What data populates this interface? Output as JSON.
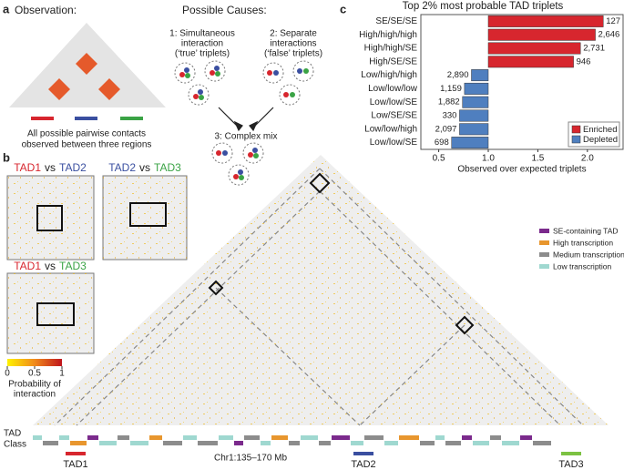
{
  "panels": {
    "a": {
      "letter": "a",
      "observation": "Observation:",
      "observation_caption": [
        "All possible pairwise contacts",
        "observed between three regions"
      ],
      "causes_title": "Possible Causes:",
      "cause1": [
        "1: Simultaneous",
        "interaction",
        "(‘true’ triplets)"
      ],
      "cause2": [
        "2: Separate",
        "interactions",
        "(‘false’ triplets)"
      ],
      "cause3": "3: Complex mix"
    },
    "b": {
      "letter": "b",
      "maps": [
        {
          "parts": [
            {
              "text": "TAD1",
              "color": "#d7262e"
            },
            {
              "text": "vs",
              "color": "#222222"
            },
            {
              "text": "TAD2",
              "color": "#3a4fa0"
            }
          ]
        },
        {
          "parts": [
            {
              "text": "TAD2",
              "color": "#3a4fa0"
            },
            {
              "text": "vs",
              "color": "#222222"
            },
            {
              "text": "TAD3",
              "color": "#3aa345"
            }
          ]
        },
        {
          "parts": [
            {
              "text": "TAD1",
              "color": "#d7262e"
            },
            {
              "text": "vs",
              "color": "#222222"
            },
            {
              "text": "TAD3",
              "color": "#3aa345"
            }
          ]
        }
      ],
      "colorbar_ticks": [
        0,
        0.5,
        1
      ],
      "colorbar_label": [
        "Probability of",
        "interaction"
      ],
      "legend": [
        {
          "name": "SE-containing TAD",
          "color": "#7b2a8c"
        },
        {
          "name": "High transcription",
          "color": "#e8962e"
        },
        {
          "name": "Medium transcription",
          "color": "#8c8c8c"
        },
        {
          "name": "Low transcription",
          "color": "#9fd8d0"
        }
      ],
      "track_label": [
        "TAD",
        "Class"
      ],
      "axis_label": "Chr1:135–170 Mb",
      "tads": [
        {
          "name": "TAD1",
          "color": "#d7262e"
        },
        {
          "name": "TAD2",
          "color": "#3a4fa0"
        },
        {
          "name": "TAD3",
          "color": "#7cc242"
        }
      ]
    },
    "c": {
      "letter": "c"
    }
  },
  "chart_data": {
    "type": "bar",
    "orientation": "horizontal",
    "title": "Top 2% most probable TAD triplets",
    "categories": [
      "SE/SE/SE",
      "High/high/high",
      "High/high/SE",
      "High/SE/SE",
      "Low/high/high",
      "Low/low/low",
      "Low/low/SE",
      "Low/SE/SE",
      "Low/low/high",
      "Low/low/SE"
    ],
    "series": [
      {
        "name": "Enriched",
        "color": "#d7262e",
        "values": [
          2.16,
          2.08,
          1.93,
          1.86,
          null,
          null,
          null,
          null,
          null,
          null
        ]
      },
      {
        "name": "Depleted",
        "color": "#4f7fbf",
        "values": [
          null,
          null,
          null,
          null,
          0.83,
          0.76,
          0.74,
          0.71,
          0.71,
          0.63
        ]
      }
    ],
    "bar_labels": [
      "127",
      "2,646",
      "2,731",
      "946",
      "2,890",
      "1,159",
      "1,882",
      "330",
      "2,097",
      "698"
    ],
    "base": 1,
    "xlim": [
      0.32,
      2.36
    ],
    "xticks": [
      0.5,
      {
        "value": 1,
        "label": "1.0"
      },
      1.5,
      {
        "value": 2,
        "label": "2.0"
      }
    ],
    "xlabel": "Observed over expected triplets",
    "legend_position": "bottom-right"
  }
}
